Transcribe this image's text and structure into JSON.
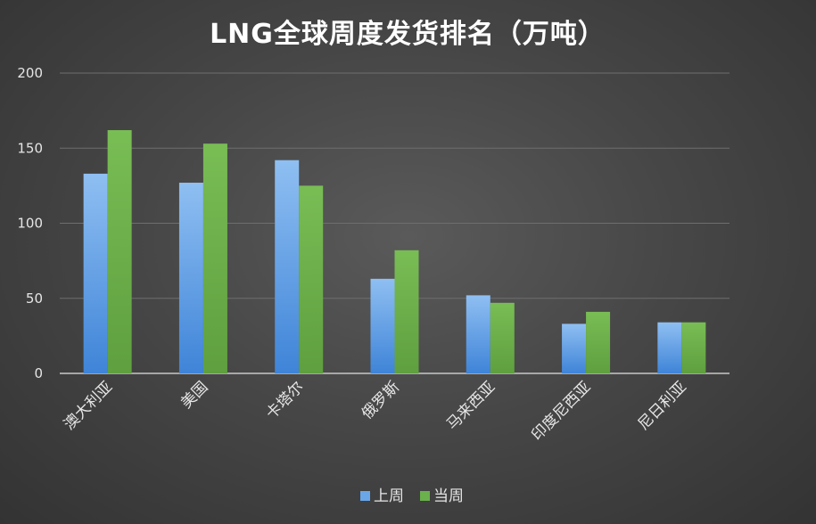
{
  "chart_data": {
    "type": "bar",
    "title": "LNG全球周度发货排名（万吨）",
    "xlabel": "",
    "ylabel": "",
    "categories": [
      "澳大利亚",
      "美国",
      "卡塔尔",
      "俄罗斯",
      "马来西亚",
      "印度尼西亚",
      "尼日利亚"
    ],
    "series": [
      {
        "name": "上周",
        "values": [
          133,
          127,
          142,
          63,
          52,
          33,
          34
        ],
        "color": "#6aa7e8"
      },
      {
        "name": "当周",
        "values": [
          162,
          153,
          125,
          82,
          47,
          41,
          34
        ],
        "color": "#6ab04c"
      }
    ],
    "ylim": [
      0,
      200
    ],
    "yticks": [
      0,
      50,
      100,
      150,
      200
    ],
    "grid": true,
    "legend": "bottom"
  }
}
